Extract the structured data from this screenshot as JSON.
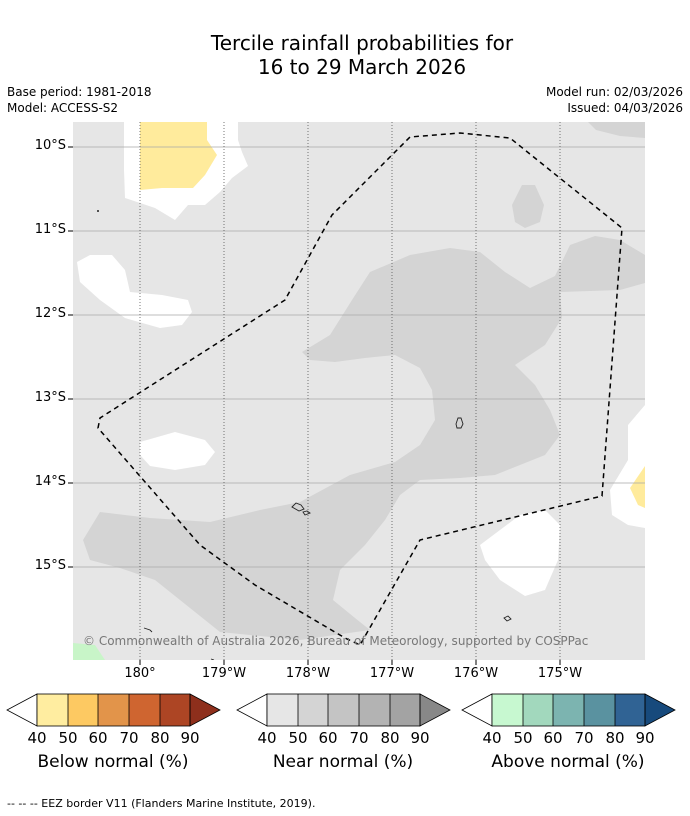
{
  "title": {
    "line1": "Tercile rainfall probabilities for",
    "line2": "16 to 29 March 2026"
  },
  "meta": {
    "base_period": "Base period: 1981-2018",
    "model": "Model: ACCESS-S2",
    "model_run": "Model run: 02/03/2026",
    "issued": "Issued: 04/03/2026"
  },
  "map": {
    "lat_ticks": [
      "10°S",
      "11°S",
      "12°S",
      "13°S",
      "14°S",
      "15°S"
    ],
    "lon_ticks": [
      "180°",
      "179°W",
      "178°W",
      "177°W",
      "176°W",
      "175°W"
    ],
    "copyright": "© Commonwealth of Australia 2026, Bureau of Meteorology, supported by COSPPac",
    "colors": {
      "near_40": "#e6e6e6",
      "near_50": "#d4d4d4",
      "below_40": "#ffeb9c",
      "above_40": "#c8f5c8",
      "white": "#ffffff"
    }
  },
  "colorbars": [
    {
      "label": "Below normal (%)",
      "ticks": [
        "40",
        "50",
        "60",
        "70",
        "80",
        "90"
      ],
      "colors": [
        "#ffeda0",
        "#fdc962",
        "#e2944a",
        "#cf6530",
        "#ad4524",
        "#8e2f1c"
      ]
    },
    {
      "label": "Near normal (%)",
      "ticks": [
        "40",
        "50",
        "60",
        "70",
        "80",
        "90"
      ],
      "colors": [
        "#e6e6e6",
        "#d4d4d4",
        "#c4c4c4",
        "#b3b3b3",
        "#a3a3a3",
        "#888888"
      ]
    },
    {
      "label": "Above normal (%)",
      "ticks": [
        "40",
        "50",
        "60",
        "70",
        "80",
        "90"
      ],
      "colors": [
        "#c7f8d0",
        "#a2d8bd",
        "#7cb4b0",
        "#5a92a0",
        "#306394",
        "#174a7c"
      ]
    }
  ],
  "footnote": "--  --  -- EEZ border V11 (Flanders Marine Institute, 2019)."
}
